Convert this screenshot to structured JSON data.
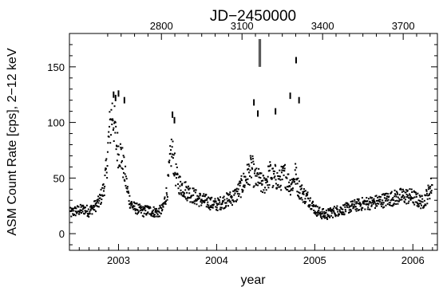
{
  "chart_data": {
    "type": "scatter",
    "title": "JD−2450000",
    "xlabel": "year",
    "ylabel": "ASM Count Rate [cps], 2−12 keV",
    "xlim": [
      2002.5,
      2006.25
    ],
    "ylim": [
      -15,
      180
    ],
    "x_ticks": [
      2003,
      2004,
      2005,
      2006
    ],
    "x_tick_labels": [
      "2003",
      "2004",
      "2005",
      "2006"
    ],
    "top_axis": {
      "label": "JD−2450000",
      "ticks": [
        2800,
        3100,
        3400,
        3700
      ],
      "tick_labels": [
        "2800",
        "3100",
        "3400",
        "3700"
      ]
    },
    "y_ticks": [
      0,
      50,
      100,
      150
    ],
    "y_tick_labels": [
      "0",
      "50",
      "100",
      "150"
    ],
    "grid": false,
    "marker": "dot",
    "markers_vertical_lines_x": [
      2004.43,
      2004.435,
      2004.44,
      2004.445,
      2004.45
    ],
    "markers_vertical_lines_yrange": [
      150,
      175
    ],
    "series": [
      {
        "color": "#000000",
        "x": [
          2002.5,
          2002.55,
          2002.6,
          2002.65,
          2002.7,
          2002.75,
          2002.8,
          2002.85,
          2002.88,
          2002.9,
          2002.92,
          2002.94,
          2002.96,
          2002.98,
          2003.0,
          2003.02,
          2003.04,
          2003.06,
          2003.08,
          2003.1,
          2003.12,
          2003.15,
          2003.2,
          2003.25,
          2003.3,
          2003.35,
          2003.4,
          2003.45,
          2003.5,
          2003.52,
          2003.54,
          2003.56,
          2003.58,
          2003.6,
          2003.62,
          2003.65,
          2003.7,
          2003.75,
          2003.8,
          2003.85,
          2003.9,
          2003.95,
          2004.0,
          2004.05,
          2004.1,
          2004.15,
          2004.2,
          2004.25,
          2004.3,
          2004.33,
          2004.36,
          2004.38,
          2004.4,
          2004.42,
          2004.45,
          2004.48,
          2004.5,
          2004.52,
          2004.55,
          2004.58,
          2004.6,
          2004.63,
          2004.66,
          2004.7,
          2004.72,
          2004.75,
          2004.78,
          2004.8,
          2004.83,
          2004.86,
          2004.9,
          2004.95,
          2005.0,
          2005.05,
          2005.1,
          2005.15,
          2005.2,
          2005.3,
          2005.4,
          2005.5,
          2005.6,
          2005.7,
          2005.8,
          2005.9,
          2006.0,
          2006.05,
          2006.1,
          2006.15,
          2006.2
        ],
        "y": [
          18,
          20,
          21,
          22,
          20,
          24,
          28,
          40,
          60,
          85,
          100,
          110,
          95,
          80,
          75,
          72,
          65,
          55,
          45,
          35,
          28,
          24,
          22,
          20,
          21,
          20,
          19,
          22,
          40,
          60,
          75,
          68,
          55,
          48,
          45,
          42,
          38,
          35,
          32,
          30,
          29,
          27,
          26,
          28,
          30,
          32,
          35,
          42,
          50,
          55,
          60,
          52,
          48,
          50,
          45,
          44,
          47,
          50,
          55,
          48,
          52,
          46,
          50,
          53,
          48,
          44,
          46,
          55,
          42,
          38,
          34,
          30,
          22,
          19,
          17,
          18,
          20,
          22,
          25,
          27,
          28,
          30,
          32,
          34,
          33,
          30,
          28,
          35,
          45
        ]
      }
    ],
    "outliers": {
      "x": [
        2002.95,
        2002.97,
        2003.0,
        2003.06,
        2003.55,
        2003.57,
        2004.38,
        2004.42,
        2004.6,
        2004.75,
        2004.81,
        2004.84
      ],
      "y": [
        125,
        122,
        126,
        120,
        107,
        102,
        118,
        108,
        110,
        124,
        156,
        120
      ]
    }
  }
}
